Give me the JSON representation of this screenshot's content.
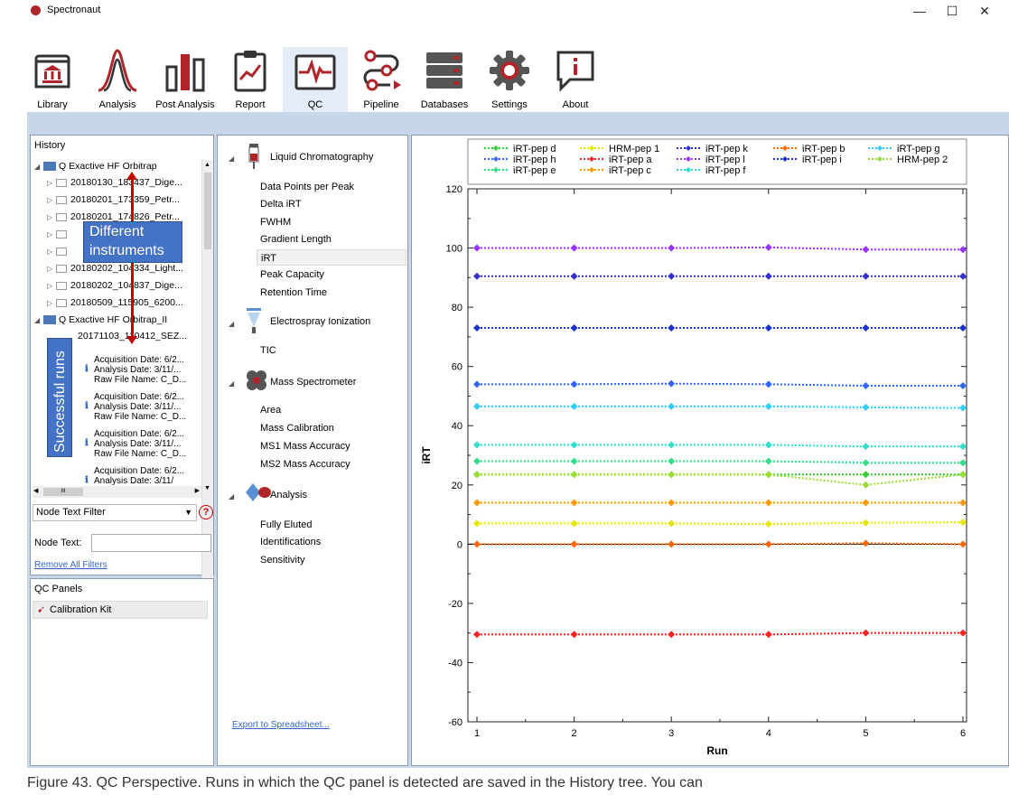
{
  "app": {
    "title": "Spectronaut"
  },
  "window": {
    "minimize": "—",
    "maximize": "☐",
    "close": "✕"
  },
  "ribbon": [
    {
      "id": "library",
      "label": "Library",
      "icon": "library-icon"
    },
    {
      "id": "analysis",
      "label": "Analysis",
      "icon": "analysis-peak-icon"
    },
    {
      "id": "post",
      "label": "Post Analysis",
      "icon": "bar-chart-icon"
    },
    {
      "id": "report",
      "label": "Report",
      "icon": "report-clipboard-icon"
    },
    {
      "id": "qc",
      "label": "QC",
      "icon": "qc-heartbeat-icon"
    },
    {
      "id": "pipeline",
      "label": "Pipeline",
      "icon": "pipeline-icon"
    },
    {
      "id": "databases",
      "label": "Databases",
      "icon": "database-icon"
    },
    {
      "id": "settings",
      "label": "Settings",
      "icon": "gear-icon"
    },
    {
      "id": "about",
      "label": "About",
      "icon": "info-icon"
    }
  ],
  "history": {
    "header": "History",
    "instrument1": "Q Exactive HF Orbitrap",
    "runs1": [
      "20180130_183437_Dige...",
      "20180201_173359_Petr...",
      "20180201_174826_Petr...",
      "",
      "",
      "20180202_104334_Light...",
      "20180202_104837_Dige...",
      "20180509_115905_6200..."
    ],
    "instrument2": "Q Exactive HF Orbitrap_II",
    "run2": "20171103_110412_SEZ...",
    "details": [
      [
        "Acquisition Date: 6/2...",
        "Analysis Date: 3/11/...",
        "Raw File Name: C_D..."
      ],
      [
        "Acquisition Date: 6/2...",
        "Analysis Date: 3/11/...",
        "Raw File Name: C_D..."
      ],
      [
        "Acquisition Date: 6/2...",
        "Analysis Date: 3/11/...",
        "Raw File Name: C_D..."
      ],
      [
        "Acquisition Date: 6/2...",
        "Analysis Date: 3/11/"
      ]
    ],
    "annotation_instruments": "Different\ninstruments",
    "annotation_runs": "Successful runs",
    "hscroll_mark": "III",
    "filter_label": "Node Text Filter",
    "help": "?",
    "node_text_label": "Node Text:",
    "node_text_value": "",
    "remove_filters": "Remove All Filters"
  },
  "qc_panels": {
    "header": "QC Panels",
    "item": "Calibration Kit"
  },
  "metrics": {
    "lc": {
      "title": "Liquid Chromatography",
      "items": [
        "Data Points per Peak",
        "Delta iRT",
        "FWHM",
        "Gradient Length",
        "iRT",
        "Peak Capacity",
        "Retention Time"
      ]
    },
    "esi": {
      "title": "Electrospray Ionization",
      "items": [
        "TIC"
      ]
    },
    "ms": {
      "title": "Mass Spectrometer",
      "items": [
        "Area",
        "Mass Calibration",
        "MS1 Mass Accuracy",
        "MS2 Mass Accuracy"
      ]
    },
    "an": {
      "title": "Analysis",
      "items": [
        "Fully Eluted",
        "Identifications",
        "Sensitivity"
      ]
    },
    "selected": "iRT",
    "export": "Export to Spreadsheet..."
  },
  "caption": "Figure 43. QC Perspective. Runs in which the QC panel is detected are saved in the History tree. You can",
  "chart_data": {
    "type": "line",
    "xlabel": "Run",
    "ylabel": "iRT",
    "x": [
      1,
      2,
      3,
      4,
      5,
      6
    ],
    "ylim": [
      -60,
      120
    ],
    "yticks": [
      -60,
      -40,
      -20,
      0,
      20,
      40,
      60,
      80,
      100,
      120
    ],
    "xticks": [
      1,
      2,
      3,
      4,
      5,
      6
    ],
    "legend_position": "top",
    "series": [
      {
        "name": "iRT-pep d",
        "color": "#33cc33",
        "values": [
          23.5,
          23.5,
          23.5,
          23.5,
          23.5,
          23.5
        ]
      },
      {
        "name": "HRM-pep 1",
        "color": "#e6e600",
        "values": [
          7,
          7,
          7,
          6.8,
          7.2,
          7.4
        ]
      },
      {
        "name": "iRT-pep k",
        "color": "#3333cc",
        "values": [
          90.5,
          90.5,
          90.5,
          90.5,
          90.5,
          90.5
        ]
      },
      {
        "name": "iRT-pep b",
        "color": "#ff6600",
        "values": [
          0,
          0,
          0,
          0,
          0.3,
          0
        ]
      },
      {
        "name": "iRT-pep g",
        "color": "#33ccff",
        "values": [
          46.5,
          46.5,
          46.5,
          46.5,
          46.2,
          46
        ]
      },
      {
        "name": "iRT-pep h",
        "color": "#3366ff",
        "values": [
          54,
          54,
          54.2,
          54,
          53.5,
          53.5
        ]
      },
      {
        "name": "iRT-pep a",
        "color": "#ff2222",
        "values": [
          -30.5,
          -30.5,
          -30.5,
          -30.5,
          -30,
          -30
        ]
      },
      {
        "name": "iRT-pep l",
        "color": "#9933ff",
        "values": [
          100,
          100,
          100,
          100.2,
          99.5,
          99.5
        ]
      },
      {
        "name": "iRT-pep i",
        "color": "#1a33cc",
        "values": [
          73,
          73,
          73,
          73,
          73,
          73
        ]
      },
      {
        "name": "HRM-pep 2",
        "color": "#99dd33",
        "values": [
          23.5,
          23.5,
          23.5,
          23.5,
          20,
          23.5
        ]
      },
      {
        "name": "iRT-pep e",
        "color": "#33dd88",
        "values": [
          28,
          28,
          28,
          28,
          27.5,
          27.5
        ]
      },
      {
        "name": "iRT-pep c",
        "color": "#ff9900",
        "values": [
          14,
          14,
          14,
          14,
          14,
          14
        ]
      },
      {
        "name": "iRT-pep f",
        "color": "#33ddcc",
        "values": [
          33.5,
          33.5,
          33.5,
          33.5,
          33,
          33
        ]
      }
    ]
  }
}
